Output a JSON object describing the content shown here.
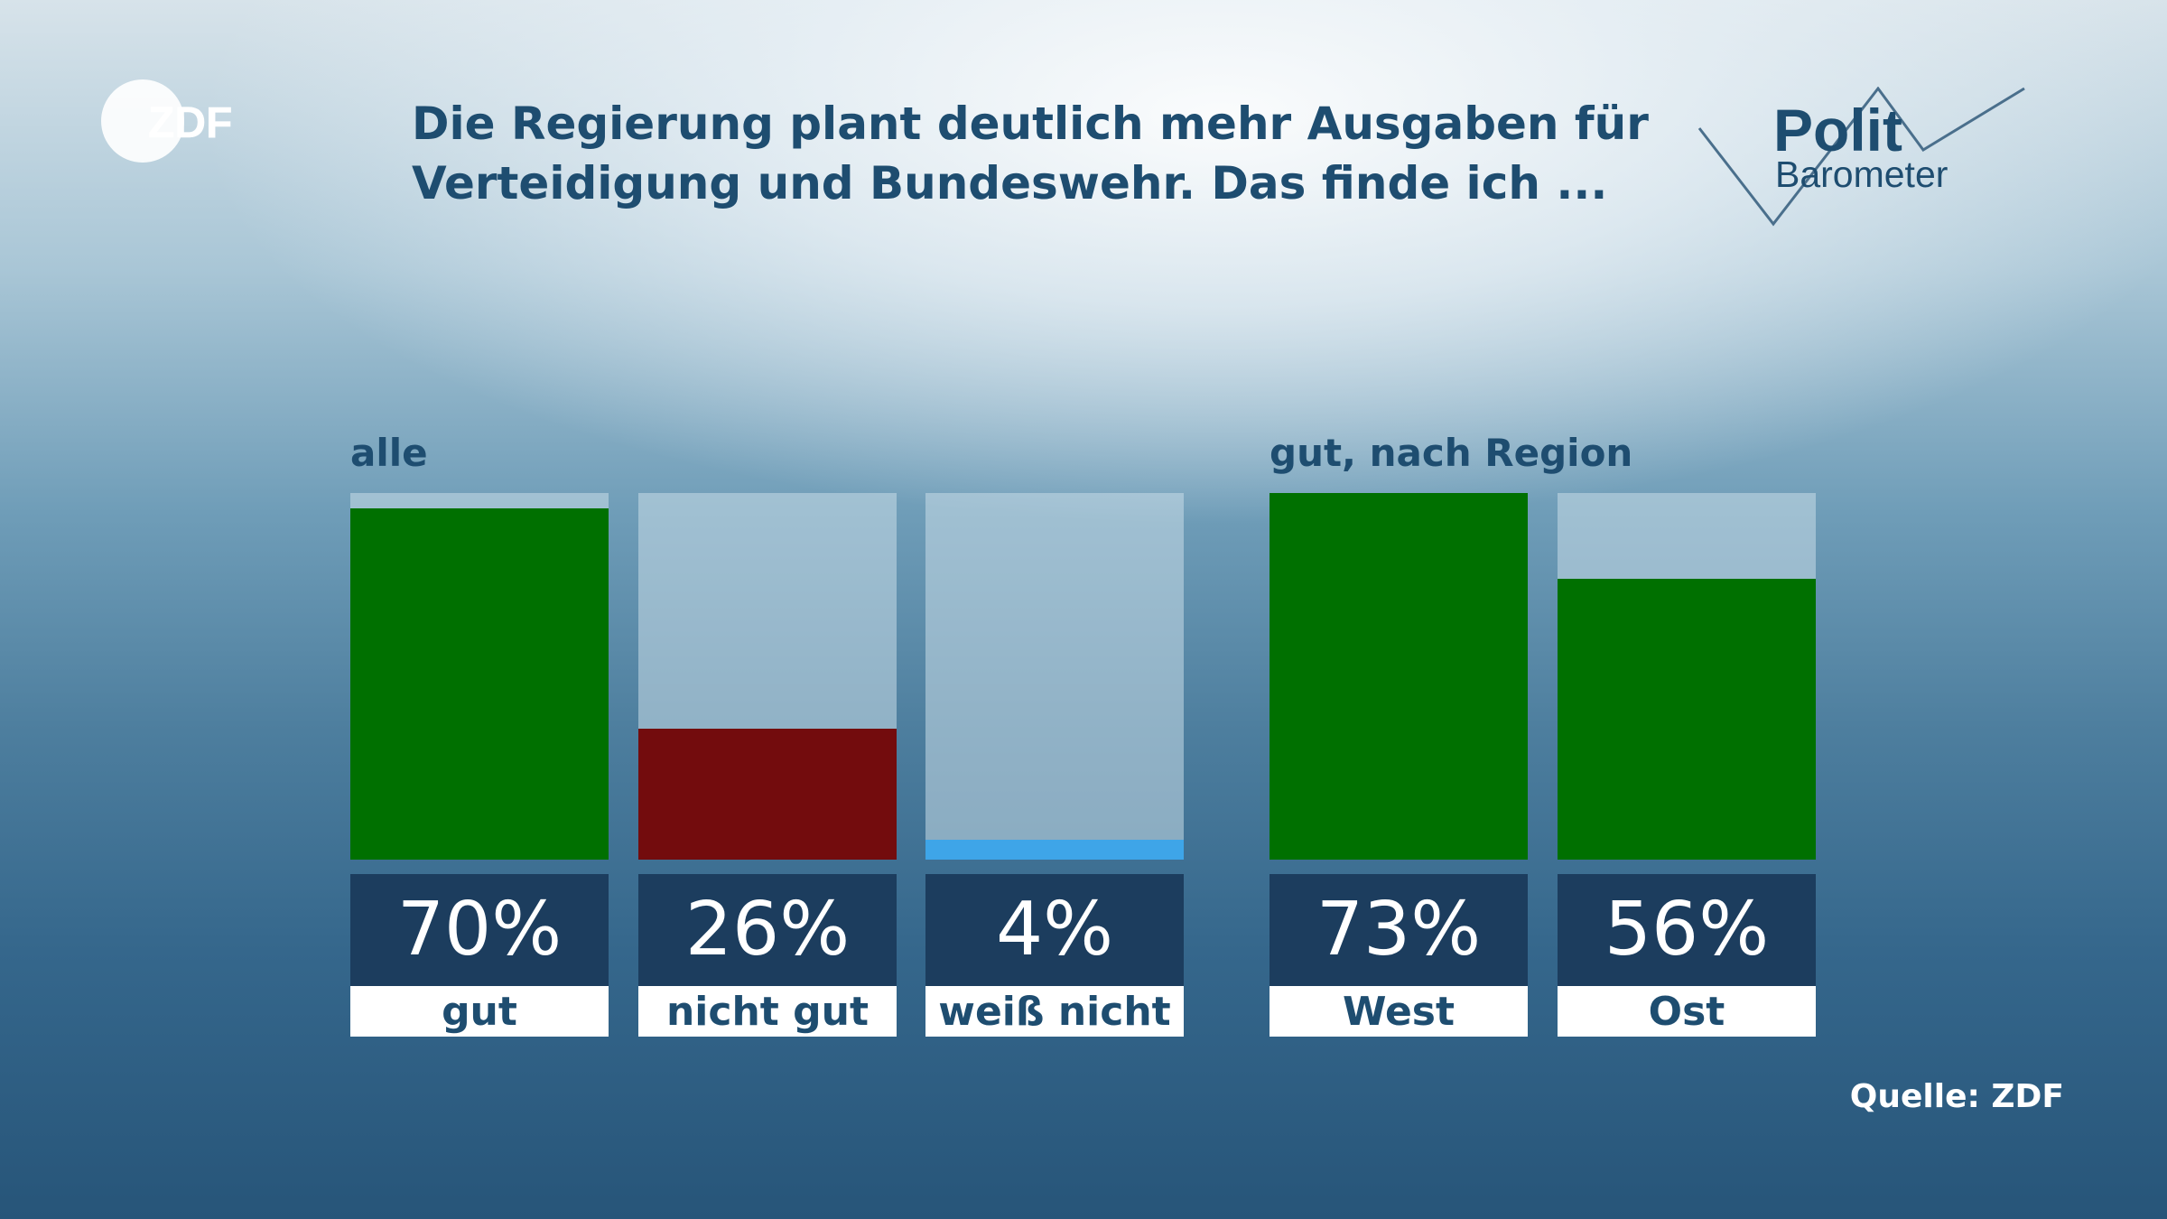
{
  "brand": "ZDF",
  "title": "Die Regierung plant deutlich mehr Ausgaben für\nVerteidigung und Bundeswehr. Das finde ich ...",
  "barometer": {
    "line1": "Polit",
    "line2": "Barometer"
  },
  "source": "Quelle: ZDF",
  "colors": {
    "gut": "#007000",
    "nicht_gut": "#730c0d",
    "weiss_nicht": "#3ea5e8",
    "value_box": "#1c3d5e",
    "text": "#1e4d70"
  },
  "chart_data": [
    {
      "type": "bar",
      "title": "alle",
      "categories": [
        "gut",
        "nicht gut",
        "weiß nicht"
      ],
      "values": [
        70,
        26,
        4
      ],
      "value_labels": [
        "70%",
        "26%",
        "4%"
      ],
      "colors": [
        "#007000",
        "#730c0d",
        "#3ea5e8"
      ],
      "ylim": [
        0,
        73
      ]
    },
    {
      "type": "bar",
      "title": "gut, nach Region",
      "categories": [
        "West",
        "Ost"
      ],
      "values": [
        73,
        56
      ],
      "value_labels": [
        "73%",
        "56%"
      ],
      "colors": [
        "#007000",
        "#007000"
      ],
      "ylim": [
        0,
        73
      ]
    }
  ]
}
